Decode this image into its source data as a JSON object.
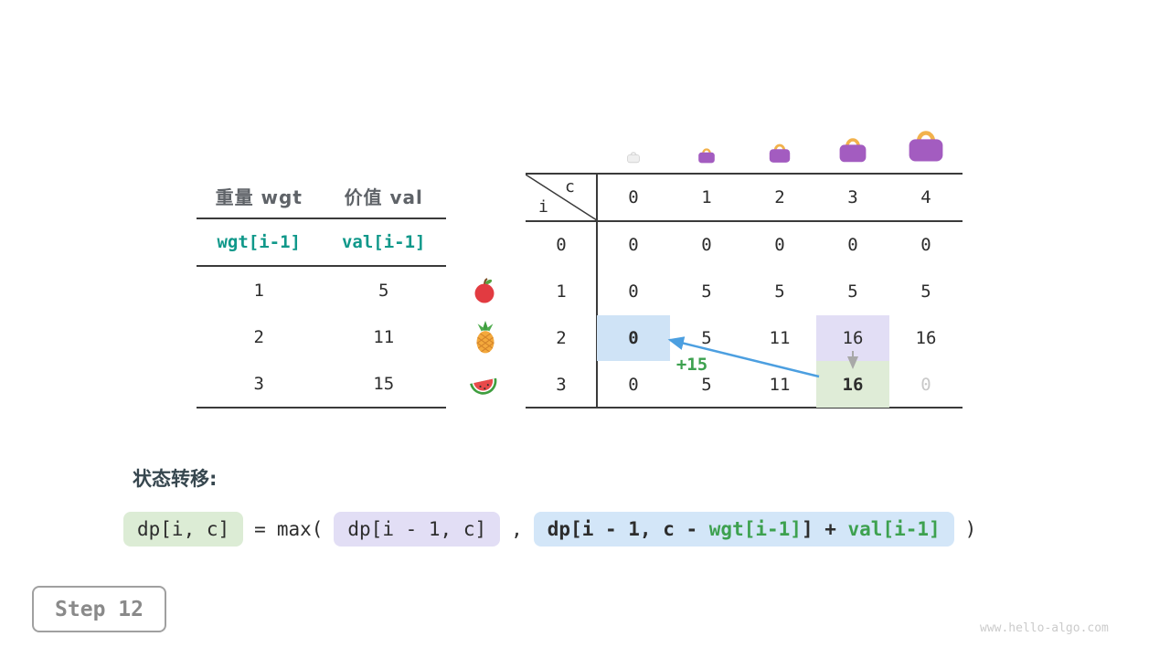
{
  "page": {
    "step_label": "Step 12",
    "watermark": "www.hello-algo.com"
  },
  "item_table": {
    "col_headers": [
      "重量 wgt",
      "价值 val"
    ],
    "var_row": [
      "wgt[i-1]",
      "val[i-1]"
    ],
    "rows": [
      [
        "1",
        "5"
      ],
      [
        "2",
        "11"
      ],
      [
        "3",
        "15"
      ]
    ]
  },
  "icons": {
    "row_fruits": [
      "apple",
      "pineapple",
      "watermelon"
    ],
    "capacity_bags": [
      "bag-empty-faint",
      "bag-small",
      "bag-medium",
      "bag-large",
      "bag-xlarge"
    ]
  },
  "dp_table": {
    "corner_top": "c",
    "corner_side": "i",
    "col_headers": [
      "0",
      "1",
      "2",
      "3",
      "4"
    ],
    "row_headers": [
      "0",
      "1",
      "2",
      "3"
    ],
    "rows": [
      [
        "0",
        "0",
        "0",
        "0",
        "0"
      ],
      [
        "0",
        "5",
        "5",
        "5",
        "5"
      ],
      [
        "0",
        "5",
        "11",
        "16",
        "16"
      ],
      [
        "0",
        "5",
        "11",
        "16",
        "0"
      ]
    ],
    "highlights": [
      {
        "row": 2,
        "col": 0,
        "style": "blue",
        "bold": true
      },
      {
        "row": 2,
        "col": 3,
        "style": "lavender",
        "bold": false
      },
      {
        "row": 3,
        "col": 3,
        "style": "green",
        "bold": true
      }
    ],
    "muted": [
      {
        "row": 3,
        "col": 4
      }
    ],
    "annotation": "+15"
  },
  "formula": {
    "label": "状态转移:",
    "lhs": "dp[i, c]",
    "equals": "=",
    "max_open": "max(",
    "arg1": "dp[i - 1, c]",
    "comma": ",",
    "arg2_prefix": "dp[i - 1, c - ",
    "arg2_wgt": "wgt[i-1]",
    "arg2_mid": "] + ",
    "arg2_val": "val[i-1]",
    "close_paren": ")"
  },
  "colors": {
    "highlight_blue": "#cfe3f6",
    "highlight_lavender": "#e2def5",
    "highlight_green": "#dfecd7",
    "arrow_blue": "#4c9fe0",
    "arrow_gray": "#a8a8a8",
    "teal_identifier": "#10988a",
    "green_identifier": "#3da14f",
    "muted_text": "#c8c8c8"
  }
}
